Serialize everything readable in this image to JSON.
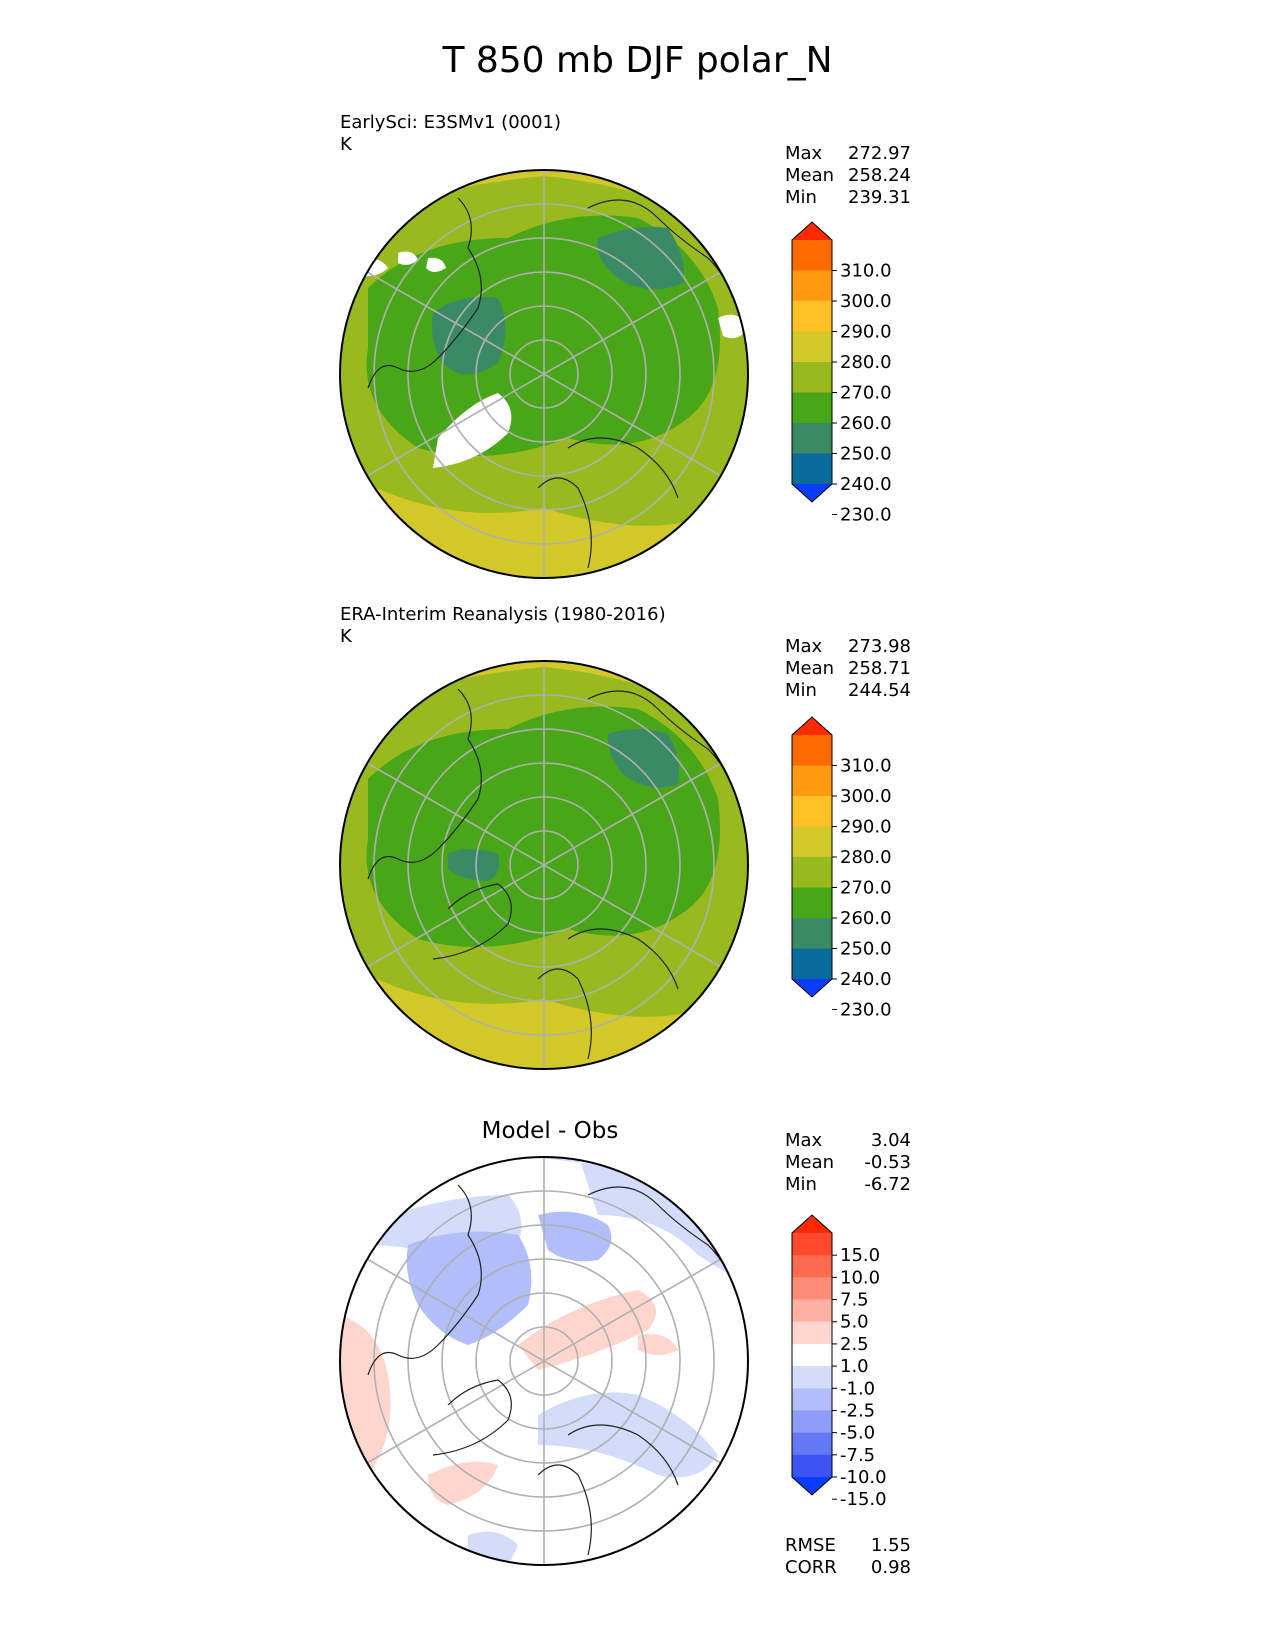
{
  "title": "T 850 mb DJF polar_N",
  "panels": [
    {
      "label": "EarlySci: E3SMv1 (0001)",
      "units": "K",
      "stats": [
        {
          "name": "Max",
          "value": "272.97"
        },
        {
          "name": "Mean",
          "value": "258.24"
        },
        {
          "name": "Min",
          "value": "239.31"
        }
      ],
      "colorbar": {
        "ticks": [
          "310.0",
          "300.0",
          "290.0",
          "280.0",
          "270.0",
          "260.0",
          "250.0",
          "240.0",
          "230.0"
        ],
        "colors_top_to_bottom": [
          "#ff2a00",
          "#ff6a00",
          "#ff9a10",
          "#ffc125",
          "#d2c828",
          "#98ba1e",
          "#4aa619",
          "#3b8a66",
          "#0a6a9a",
          "#0a3cff"
        ]
      }
    },
    {
      "label": "ERA-Interim Reanalysis (1980-2016)",
      "units": "K",
      "stats": [
        {
          "name": "Max",
          "value": "273.98"
        },
        {
          "name": "Mean",
          "value": "258.71"
        },
        {
          "name": "Min",
          "value": "244.54"
        }
      ],
      "colorbar": {
        "ticks": [
          "310.0",
          "300.0",
          "290.0",
          "280.0",
          "270.0",
          "260.0",
          "250.0",
          "240.0",
          "230.0"
        ],
        "colors_top_to_bottom": [
          "#ff2a00",
          "#ff6a00",
          "#ff9a10",
          "#ffc125",
          "#d2c828",
          "#98ba1e",
          "#4aa619",
          "#3b8a66",
          "#0a6a9a",
          "#0a3cff"
        ]
      }
    },
    {
      "title": "Model - Obs",
      "stats": [
        {
          "name": "Max",
          "value": "3.04"
        },
        {
          "name": "Mean",
          "value": "-0.53"
        },
        {
          "name": "Min",
          "value": "-6.72"
        }
      ],
      "extra_stats": [
        {
          "name": "RMSE",
          "value": "1.55"
        },
        {
          "name": "CORR",
          "value": "0.98"
        }
      ],
      "colorbar": {
        "ticks": [
          "15.0",
          "10.0",
          "7.5",
          "5.0",
          "2.5",
          "1.0",
          "-1.0",
          "-2.5",
          "-5.0",
          "-7.5",
          "-10.0",
          "-15.0"
        ],
        "colors_top_to_bottom": [
          "#ff2a00",
          "#ff4a30",
          "#ff6a50",
          "#ff8c78",
          "#ffb2a4",
          "#ffd6ce",
          "#ffffff",
          "#d4dcfc",
          "#b2befa",
          "#8c9cf8",
          "#6478f6",
          "#3c54f4",
          "#0a3cff"
        ]
      }
    }
  ]
}
